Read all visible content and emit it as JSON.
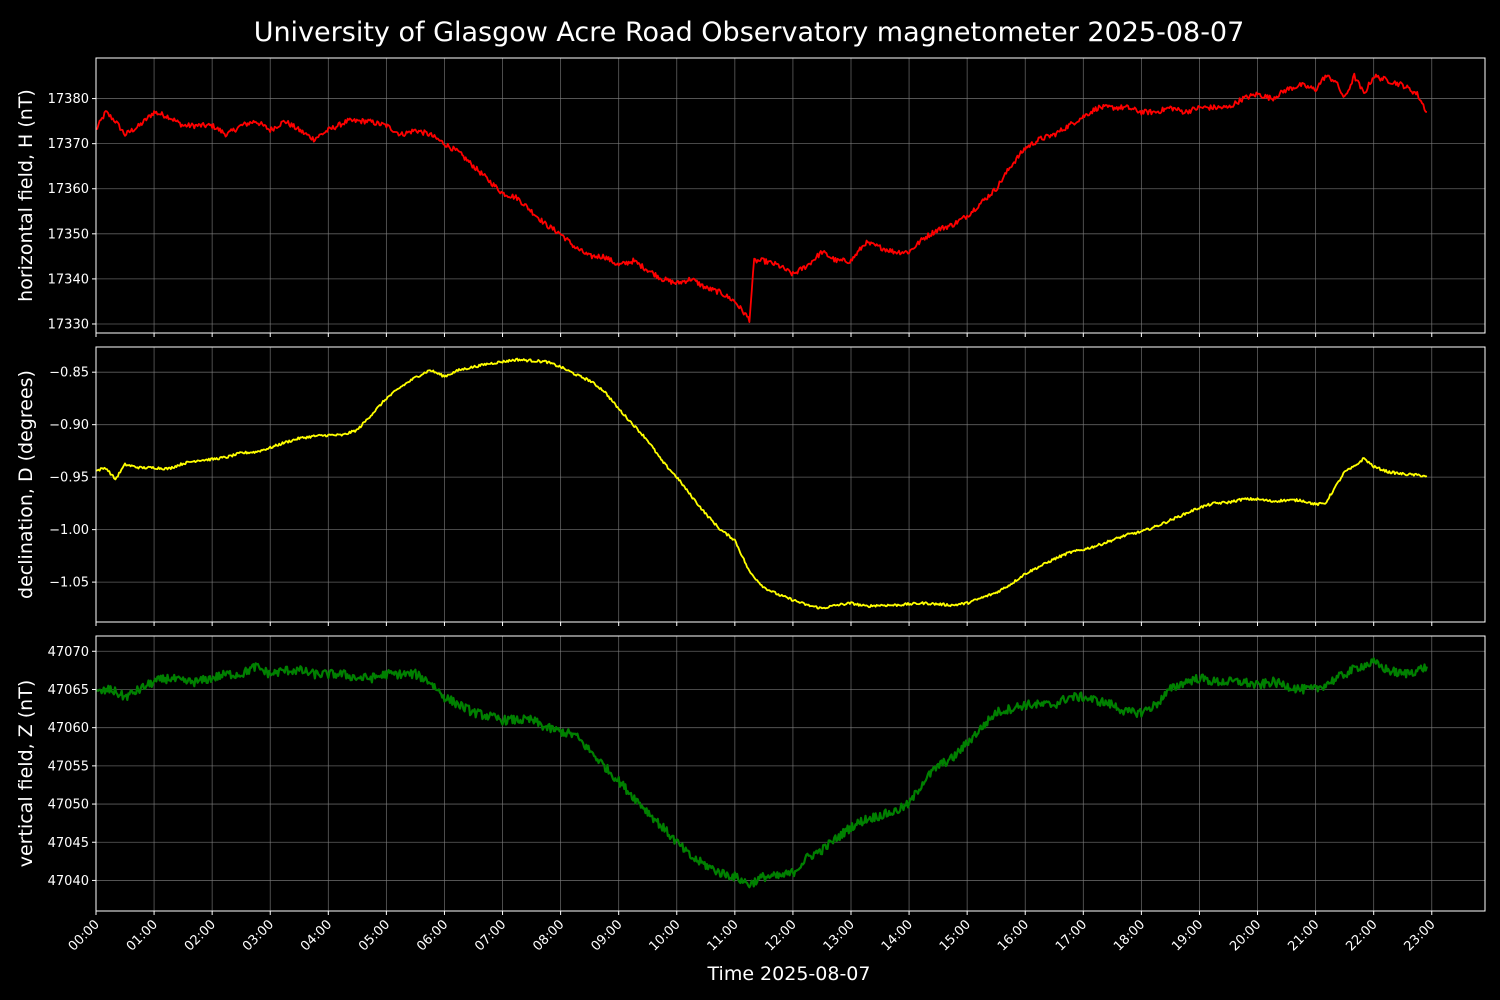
{
  "chart_data": [
    {
      "type": "line",
      "title": "University of Glasgow Acre Road Observatory magnetometer 2025-08-07",
      "xlabel": "Time 2025-08-07",
      "ylabel": "horizontal field, H (nT)",
      "color": "#ff0000",
      "xlim": [
        "00:00",
        "23:55"
      ],
      "ylim": [
        17328,
        17389
      ],
      "yticks": [
        17330,
        17340,
        17350,
        17360,
        17370,
        17380
      ],
      "grid": true,
      "series": [
        {
          "x": [
            "00:00",
            "00:10",
            "00:20",
            "00:30",
            "00:45",
            "01:00",
            "01:15",
            "01:30",
            "01:45",
            "02:00",
            "02:15",
            "02:30",
            "02:45",
            "03:00",
            "03:15",
            "03:30",
            "03:45",
            "04:00",
            "04:20",
            "04:40",
            "05:00",
            "05:15",
            "05:30",
            "05:45",
            "06:00",
            "06:15",
            "06:30",
            "06:45",
            "07:00",
            "07:15",
            "07:30",
            "07:45",
            "08:00",
            "08:15",
            "08:30",
            "08:45",
            "09:00",
            "09:15",
            "09:30",
            "09:45",
            "10:00",
            "10:15",
            "10:30",
            "10:45",
            "11:00",
            "11:15",
            "11:20",
            "11:30",
            "11:45",
            "12:00",
            "12:15",
            "12:30",
            "12:45",
            "13:00",
            "13:15",
            "13:30",
            "13:45",
            "14:00",
            "14:15",
            "14:30",
            "14:45",
            "15:00",
            "15:15",
            "15:30",
            "15:45",
            "16:00",
            "16:15",
            "16:30",
            "16:45",
            "17:00",
            "17:15",
            "17:30",
            "17:45",
            "18:00",
            "18:15",
            "18:30",
            "18:45",
            "19:00",
            "19:15",
            "19:30",
            "19:45",
            "20:00",
            "20:15",
            "20:30",
            "20:45",
            "21:00",
            "21:10",
            "21:20",
            "21:30",
            "21:40",
            "21:50",
            "22:00",
            "22:15",
            "22:30",
            "22:45",
            "22:55"
          ],
          "y": [
            17373,
            17377,
            17375,
            17372,
            17374,
            17377,
            17376,
            17374,
            17374,
            17374,
            17372,
            17374,
            17375,
            17373,
            17375,
            17373,
            17371,
            17373,
            17375,
            17375,
            17374,
            17372,
            17373,
            17372,
            17370,
            17368,
            17365,
            17362,
            17359,
            17358,
            17355,
            17352,
            17350,
            17347,
            17345,
            17345,
            17343,
            17344,
            17342,
            17340,
            17339,
            17340,
            17338,
            17337,
            17335,
            17331,
            17344,
            17344,
            17343,
            17341,
            17343,
            17346,
            17344,
            17344,
            17348,
            17347,
            17346,
            17346,
            17349,
            17351,
            17352,
            17354,
            17357,
            17360,
            17365,
            17369,
            17371,
            17372,
            17374,
            17376,
            17378,
            17378,
            17378,
            17377,
            17377,
            17378,
            17377,
            17378,
            17378,
            17378,
            17380,
            17381,
            17380,
            17382,
            17383,
            17382,
            17385,
            17384,
            17380,
            17385,
            17381,
            17385,
            17384,
            17383,
            17381,
            17377
          ]
        }
      ]
    },
    {
      "type": "line",
      "ylabel": "declination, D (degrees)",
      "color": "#ffff00",
      "xlim": [
        "00:00",
        "23:55"
      ],
      "ylim": [
        -1.088,
        -0.826
      ],
      "yticks": [
        -1.05,
        -1.0,
        -0.95,
        -0.9,
        -0.85
      ],
      "yticklabels": [
        "−1.05",
        "−1.00",
        "−0.95",
        "−0.90",
        "−0.85"
      ],
      "grid": true,
      "series": [
        {
          "x": [
            "00:00",
            "00:10",
            "00:20",
            "00:30",
            "00:45",
            "01:00",
            "01:15",
            "01:30",
            "01:45",
            "02:00",
            "02:15",
            "02:30",
            "02:45",
            "03:00",
            "03:15",
            "03:30",
            "03:45",
            "04:00",
            "04:15",
            "04:30",
            "04:45",
            "05:00",
            "05:15",
            "05:30",
            "05:45",
            "06:00",
            "06:15",
            "06:30",
            "06:45",
            "07:00",
            "07:15",
            "07:30",
            "07:45",
            "08:00",
            "08:15",
            "08:30",
            "08:45",
            "09:00",
            "09:15",
            "09:30",
            "09:45",
            "10:00",
            "10:15",
            "10:30",
            "10:45",
            "11:00",
            "11:15",
            "11:30",
            "11:45",
            "12:00",
            "12:15",
            "12:30",
            "12:45",
            "13:00",
            "13:15",
            "13:30",
            "13:45",
            "14:00",
            "14:15",
            "14:30",
            "14:45",
            "15:00",
            "15:15",
            "15:30",
            "15:45",
            "16:00",
            "16:15",
            "16:30",
            "16:45",
            "17:00",
            "17:15",
            "17:30",
            "17:45",
            "18:00",
            "18:15",
            "18:30",
            "18:45",
            "19:00",
            "19:15",
            "19:30",
            "19:45",
            "20:00",
            "20:15",
            "20:30",
            "20:45",
            "21:00",
            "21:10",
            "21:20",
            "21:30",
            "21:40",
            "21:50",
            "22:00",
            "22:15",
            "22:30",
            "22:45",
            "22:55"
          ],
          "y": [
            -0.944,
            -0.941,
            -0.952,
            -0.938,
            -0.941,
            -0.941,
            -0.942,
            -0.937,
            -0.934,
            -0.933,
            -0.931,
            -0.927,
            -0.926,
            -0.922,
            -0.917,
            -0.913,
            -0.911,
            -0.91,
            -0.91,
            -0.905,
            -0.89,
            -0.875,
            -0.864,
            -0.855,
            -0.848,
            -0.854,
            -0.848,
            -0.845,
            -0.842,
            -0.84,
            -0.838,
            -0.839,
            -0.84,
            -0.845,
            -0.852,
            -0.858,
            -0.868,
            -0.885,
            -0.9,
            -0.915,
            -0.935,
            -0.95,
            -0.968,
            -0.985,
            -1.0,
            -1.01,
            -1.04,
            -1.055,
            -1.062,
            -1.067,
            -1.072,
            -1.075,
            -1.072,
            -1.07,
            -1.073,
            -1.072,
            -1.072,
            -1.071,
            -1.07,
            -1.071,
            -1.072,
            -1.07,
            -1.065,
            -1.06,
            -1.052,
            -1.042,
            -1.035,
            -1.028,
            -1.022,
            -1.019,
            -1.015,
            -1.01,
            -1.005,
            -1.002,
            -0.997,
            -0.991,
            -0.985,
            -0.979,
            -0.975,
            -0.974,
            -0.971,
            -0.971,
            -0.973,
            -0.972,
            -0.972,
            -0.976,
            -0.975,
            -0.96,
            -0.945,
            -0.94,
            -0.932,
            -0.94,
            -0.945,
            -0.947,
            -0.948,
            -0.949
          ]
        }
      ]
    },
    {
      "type": "line",
      "ylabel": "vertical field, Z (nT)",
      "color": "#008000",
      "xlim": [
        "00:00",
        "23:55"
      ],
      "ylim": [
        47036,
        47072
      ],
      "yticks": [
        47040,
        47045,
        47050,
        47055,
        47060,
        47065,
        47070
      ],
      "grid": true,
      "xticks": [
        "00:00",
        "01:00",
        "02:00",
        "03:00",
        "04:00",
        "05:00",
        "06:00",
        "07:00",
        "08:00",
        "09:00",
        "10:00",
        "11:00",
        "12:00",
        "13:00",
        "14:00",
        "15:00",
        "16:00",
        "17:00",
        "18:00",
        "19:00",
        "20:00",
        "21:00",
        "22:00",
        "23:00"
      ],
      "series": [
        {
          "x": [
            "00:00",
            "00:15",
            "00:30",
            "00:45",
            "01:00",
            "01:15",
            "01:30",
            "01:45",
            "02:00",
            "02:15",
            "02:30",
            "02:45",
            "03:00",
            "03:15",
            "03:30",
            "03:45",
            "04:00",
            "04:15",
            "04:30",
            "04:45",
            "05:00",
            "05:15",
            "05:30",
            "05:45",
            "06:00",
            "06:15",
            "06:30",
            "06:45",
            "07:00",
            "07:15",
            "07:30",
            "07:45",
            "08:00",
            "08:15",
            "08:30",
            "08:45",
            "09:00",
            "09:15",
            "09:30",
            "09:45",
            "10:00",
            "10:15",
            "10:30",
            "10:45",
            "11:00",
            "11:15",
            "11:30",
            "11:45",
            "12:00",
            "12:15",
            "12:30",
            "12:45",
            "13:00",
            "13:15",
            "13:30",
            "13:45",
            "14:00",
            "14:15",
            "14:30",
            "14:45",
            "15:00",
            "15:15",
            "15:30",
            "15:45",
            "16:00",
            "16:15",
            "16:30",
            "16:45",
            "17:00",
            "17:15",
            "17:30",
            "17:45",
            "18:00",
            "18:15",
            "18:30",
            "18:45",
            "19:00",
            "19:15",
            "19:30",
            "19:45",
            "20:00",
            "20:15",
            "20:30",
            "20:45",
            "21:00",
            "21:15",
            "21:30",
            "21:45",
            "22:00",
            "22:15",
            "22:30",
            "22:45",
            "22:55"
          ],
          "y": [
            47064.5,
            47065,
            47064,
            47065,
            47066,
            47066.5,
            47066,
            47066,
            47066.5,
            47067,
            47067,
            47068,
            47067,
            47067.5,
            47067.5,
            47067,
            47067,
            47067,
            47066.5,
            47066.5,
            47067,
            47067,
            47067,
            47066,
            47064,
            47063,
            47062,
            47061.5,
            47061,
            47061,
            47061,
            47060,
            47059.5,
            47059,
            47057,
            47055,
            47053,
            47051,
            47049,
            47047,
            47045,
            47043,
            47042,
            47041,
            47040.5,
            47039.5,
            47040.5,
            47040.5,
            47041,
            47043,
            47044,
            47045.5,
            47047,
            47048,
            47048.5,
            47049,
            47050,
            47053,
            47055,
            47056,
            47058,
            47060,
            47062,
            47062.5,
            47063,
            47063,
            47063,
            47064,
            47064,
            47063.5,
            47063,
            47062,
            47062,
            47063,
            47065,
            47066,
            47066.5,
            47066,
            47066,
            47066,
            47065.5,
            47066,
            47065.5,
            47065,
            47065,
            47066,
            47067,
            47068,
            47068.5,
            47067.5,
            47067,
            47067.5,
            47068
          ]
        }
      ]
    }
  ]
}
